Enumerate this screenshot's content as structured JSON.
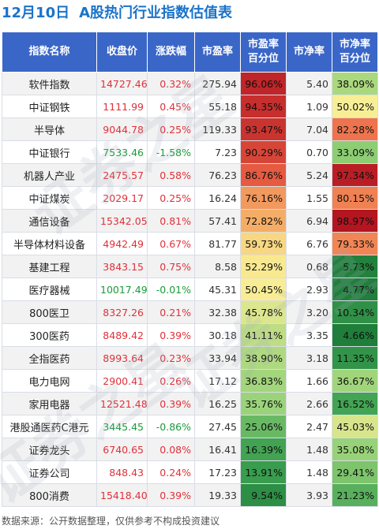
{
  "header": {
    "date": "12月10日",
    "title": "A股热门行业指数估值表"
  },
  "columns": [
    "指数名称",
    "收盘价",
    "涨跌幅",
    "市盈率",
    "市盈率\n百分位",
    "市净率",
    "市净率\n百分位"
  ],
  "rows": [
    {
      "name": "软件指数",
      "close": "14727.46",
      "change": "0.32%",
      "pe": "275.94",
      "pe_pct": "96.06%",
      "pb": "5.40",
      "pb_pct": "38.09%",
      "dir": "up"
    },
    {
      "name": "中证钢铁",
      "close": "1111.99",
      "change": "0.45%",
      "pe": "55.18",
      "pe_pct": "94.35%",
      "pb": "1.09",
      "pb_pct": "50.02%",
      "dir": "up"
    },
    {
      "name": "半导体",
      "close": "9044.78",
      "change": "0.25%",
      "pe": "119.33",
      "pe_pct": "93.47%",
      "pb": "7.04",
      "pb_pct": "82.28%",
      "dir": "up"
    },
    {
      "name": "中证银行",
      "close": "7533.46",
      "change": "-1.58%",
      "pe": "7.23",
      "pe_pct": "90.29%",
      "pb": "0.70",
      "pb_pct": "33.09%",
      "dir": "down"
    },
    {
      "name": "机器人产业",
      "close": "2475.57",
      "change": "0.58%",
      "pe": "76.23",
      "pe_pct": "86.76%",
      "pb": "5.24",
      "pb_pct": "97.34%",
      "dir": "up"
    },
    {
      "name": "中证煤炭",
      "close": "2029.17",
      "change": "0.25%",
      "pe": "16.24",
      "pe_pct": "76.16%",
      "pb": "1.55",
      "pb_pct": "80.15%",
      "dir": "up"
    },
    {
      "name": "通信设备",
      "close": "15342.05",
      "change": "0.81%",
      "pe": "57.41",
      "pe_pct": "72.82%",
      "pb": "6.94",
      "pb_pct": "98.97%",
      "dir": "up"
    },
    {
      "name": "半导体材料设备",
      "close": "4942.49",
      "change": "0.67%",
      "pe": "81.77",
      "pe_pct": "59.73%",
      "pb": "6.76",
      "pb_pct": "79.33%",
      "dir": "up"
    },
    {
      "name": "基建工程",
      "close": "3843.15",
      "change": "0.75%",
      "pe": "8.58",
      "pe_pct": "52.29%",
      "pb": "0.68",
      "pb_pct": "5.73%",
      "dir": "up"
    },
    {
      "name": "医疗器械",
      "close": "10017.49",
      "change": "-0.01%",
      "pe": "45.31",
      "pe_pct": "50.45%",
      "pb": "2.93",
      "pb_pct": "4.77%",
      "dir": "down"
    },
    {
      "name": "800医卫",
      "close": "8327.26",
      "change": "0.21%",
      "pe": "32.38",
      "pe_pct": "45.78%",
      "pb": "3.20",
      "pb_pct": "10.34%",
      "dir": "up"
    },
    {
      "name": "300医药",
      "close": "8489.42",
      "change": "0.39%",
      "pe": "30.18",
      "pe_pct": "41.11%",
      "pb": "3.35",
      "pb_pct": "4.66%",
      "dir": "up"
    },
    {
      "name": "全指医药",
      "close": "8993.64",
      "change": "0.23%",
      "pe": "33.94",
      "pe_pct": "38.90%",
      "pb": "3.18",
      "pb_pct": "11.35%",
      "dir": "up"
    },
    {
      "name": "电力电网",
      "close": "2900.41",
      "change": "0.26%",
      "pe": "17.12",
      "pe_pct": "36.83%",
      "pb": "1.66",
      "pb_pct": "36.67%",
      "dir": "up"
    },
    {
      "name": "家用电器",
      "close": "12521.48",
      "change": "0.39%",
      "pe": "16.25",
      "pe_pct": "35.76%",
      "pb": "2.66",
      "pb_pct": "16.52%",
      "dir": "up"
    },
    {
      "name": "港股通医药C港元",
      "close": "3445.45",
      "change": "-0.86%",
      "pe": "27.45",
      "pe_pct": "25.06%",
      "pb": "2.47",
      "pb_pct": "45.03%",
      "dir": "down"
    },
    {
      "name": "证券龙头",
      "close": "6740.65",
      "change": "0.08%",
      "pe": "16.41",
      "pe_pct": "16.39%",
      "pb": "1.48",
      "pb_pct": "35.08%",
      "dir": "up"
    },
    {
      "name": "证券公司",
      "close": "848.43",
      "change": "0.24%",
      "pe": "17.23",
      "pe_pct": "13.91%",
      "pb": "1.48",
      "pb_pct": "29.41%",
      "dir": "up"
    },
    {
      "name": "800消费",
      "close": "15418.40",
      "change": "0.39%",
      "pe": "19.33",
      "pe_pct": "9.54%",
      "pb": "3.93",
      "pb_pct": "21.23%",
      "dir": "up"
    }
  ],
  "colors": {
    "header_bg": "#3a66c8",
    "title": "#1a73c9",
    "up": "#e0303a",
    "down": "#1a9b3a"
  },
  "footer": "数据来源：公开数据整理，仅供参考不构成投资建议"
}
